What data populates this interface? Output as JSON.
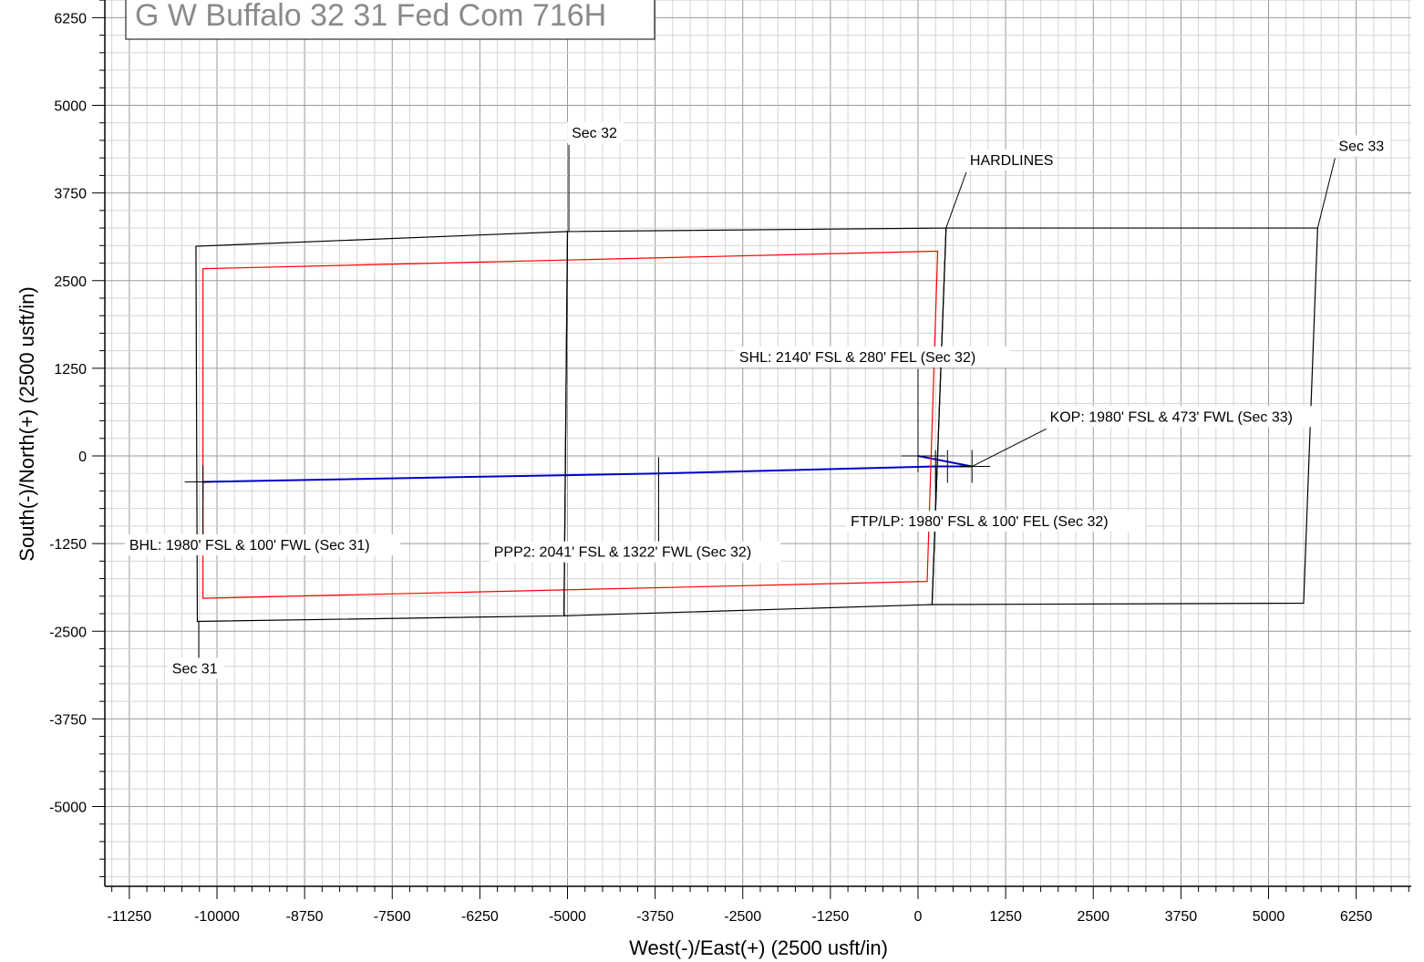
{
  "chart_data": {
    "type": "line",
    "title": "G W Buffalo 32 31 Fed Com 716H",
    "xlabel": "West(-)/East(+) (2500 usft/in)",
    "ylabel": "South(-)/North(+) (2500 usft/in)",
    "xlim": [
      -12000,
      7000
    ],
    "ylim": [
      -6200,
      6500
    ],
    "xticks": [
      -11250,
      -10000,
      -8750,
      -7500,
      -6250,
      -5000,
      -3750,
      -2500,
      -1250,
      0,
      1250,
      2500,
      3750,
      5000,
      6250
    ],
    "yticks": [
      6250,
      5000,
      3750,
      2500,
      1250,
      0,
      -1250,
      -2500,
      -3750,
      -5000
    ],
    "grid": true,
    "series": [
      {
        "color": "#0000cc",
        "x": [
          -10200,
          -3700,
          250,
          770,
          0
        ],
        "y": [
          -370,
          -250,
          -150,
          -150,
          0
        ]
      },
      {
        "name": "HARDLINES",
        "color": "#ff0000",
        "closed": true,
        "x": [
          -10200,
          280,
          130,
          -10200
        ],
        "y": [
          2670,
          2920,
          -1790,
          -2030
        ]
      },
      {
        "color": "#000000",
        "closed": true,
        "x": [
          -10300,
          -5000,
          -5050,
          -10280
        ],
        "y": [
          2990,
          3200,
          -2280,
          -2360
        ]
      },
      {
        "color": "#000000",
        "closed": true,
        "x": [
          -5000,
          400,
          200,
          -5050
        ],
        "y": [
          3200,
          3250,
          -2120,
          -2280
        ]
      },
      {
        "color": "#000000",
        "closed": true,
        "x": [
          400,
          5700,
          5500,
          200
        ],
        "y": [
          3250,
          3250,
          -2100,
          -2120
        ]
      }
    ],
    "tick_marks": [
      {
        "x": -10200,
        "y": -370
      },
      {
        "x": -3700,
        "y": -250
      },
      {
        "x": 0,
        "y": 0
      },
      {
        "x": 250,
        "y": -150
      },
      {
        "x": 420,
        "y": -150
      },
      {
        "x": 770,
        "y": -150
      }
    ],
    "annotations": [
      {
        "text": "Sec 32",
        "x": -4940,
        "y": 4540,
        "ax": -4980,
        "ay": 3200
      },
      {
        "text": "Sec 33",
        "x": 6000,
        "y": 4350,
        "ax": 5700,
        "ay": 3250
      },
      {
        "text": "HARDLINES",
        "x": 740,
        "y": 4150,
        "ax": 400,
        "ay": 3250
      },
      {
        "text": "Sec 31",
        "x": -10640,
        "y": -3100,
        "ax": -10260,
        "ay": -2360
      },
      {
        "text": "SHL: 2140' FSL & 280' FEL (Sec 32)",
        "x": -2550,
        "y": 1340,
        "ax": 0,
        "ay": 0
      },
      {
        "text": "KOP: 1980' FSL & 473' FWL (Sec 33)",
        "x": 1880,
        "y": 490,
        "ax": 770,
        "ay": -150
      },
      {
        "text": "FTP/LP: 1980' FSL & 100' FEL (Sec 32)",
        "x": -960,
        "y": -1000,
        "ax": 250,
        "ay": -150
      },
      {
        "text": "BHL: 1980' FSL & 100' FWL (Sec 31)",
        "x": -11250,
        "y": -1340,
        "ax": -10200,
        "ay": -370
      },
      {
        "text": "PPP2: 2041' FSL & 1322' FWL (Sec 32)",
        "x": -6050,
        "y": -1440,
        "ax": -3700,
        "ay": -250
      }
    ]
  }
}
